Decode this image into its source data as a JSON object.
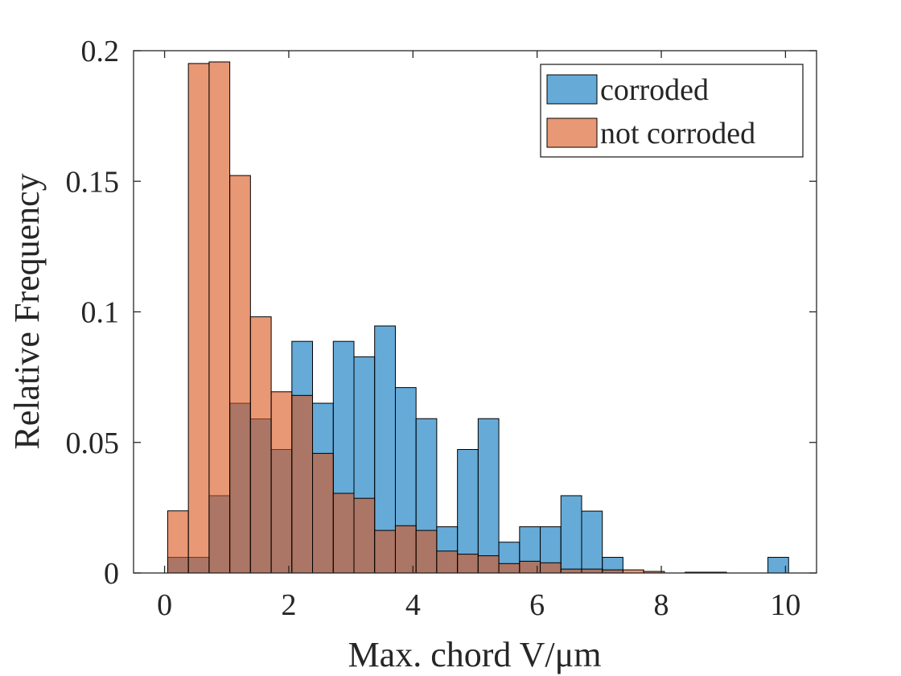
{
  "chart_data": {
    "type": "bar",
    "title": "",
    "xlabel": "Max. chord V/μm",
    "ylabel": "Relative Frequency",
    "xlim": [
      -0.5,
      10.5
    ],
    "ylim": [
      0,
      0.2
    ],
    "xticks": [
      0,
      2,
      4,
      6,
      8,
      10
    ],
    "xtick_labels": [
      "0",
      "2",
      "4",
      "6",
      "8",
      "10"
    ],
    "yticks": [
      0,
      0.05,
      0.1,
      0.15,
      0.2
    ],
    "ytick_labels": [
      "0",
      "0.05",
      "0.1",
      "0.15",
      "0.2"
    ],
    "grid": false,
    "legend_position": "top-right",
    "bin_edges": [
      0.05,
      0.383,
      0.717,
      1.05,
      1.383,
      1.717,
      2.05,
      2.383,
      2.717,
      3.05,
      3.383,
      3.717,
      4.05,
      4.383,
      4.717,
      5.05,
      5.383,
      5.717,
      6.05,
      6.383,
      6.717,
      7.05,
      7.383,
      7.717,
      8.05,
      8.383,
      8.717,
      9.05,
      9.383,
      9.717,
      10.05
    ],
    "series": [
      {
        "name": "corroded",
        "color": "#0072bd",
        "values": [
          0.006,
          0.006,
          0.0296,
          0.065,
          0.059,
          0.0473,
          0.0887,
          0.065,
          0.0887,
          0.0828,
          0.0946,
          0.071,
          0.0591,
          0.0177,
          0.0473,
          0.0591,
          0.0118,
          0.0177,
          0.0177,
          0.0296,
          0.0237,
          0.006,
          0,
          0,
          0,
          0,
          0,
          0,
          0,
          0.006
        ]
      },
      {
        "name": "not corroded",
        "color": "#d95319",
        "values": [
          0.0238,
          0.1951,
          0.1957,
          0.1522,
          0.0981,
          0.0694,
          0.068,
          0.0458,
          0.0305,
          0.0286,
          0.0163,
          0.0181,
          0.0163,
          0.0084,
          0.0072,
          0.0066,
          0.0036,
          0.0045,
          0.0039,
          0.0015,
          0.0015,
          0.0012,
          0.0012,
          0.0006,
          0,
          0.0003,
          0.0003,
          0,
          0,
          0
        ]
      }
    ]
  }
}
